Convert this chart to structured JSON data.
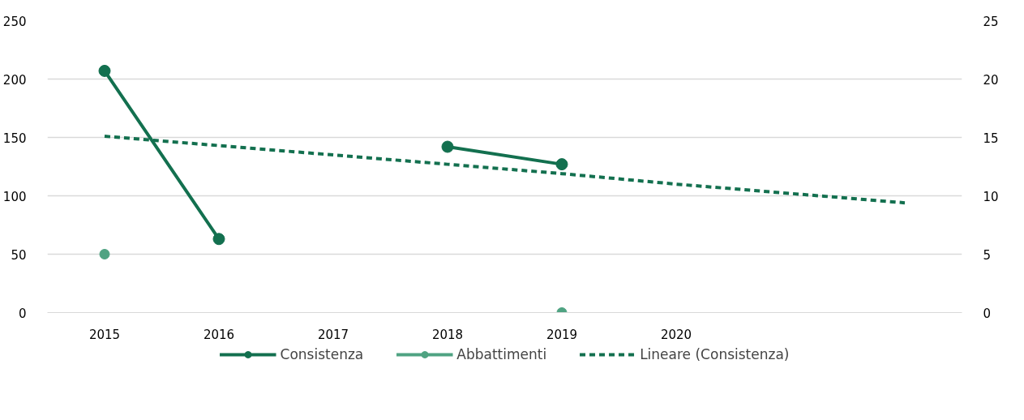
{
  "chart_data": {
    "type": "line",
    "categories": [
      "2015",
      "2016",
      "2017",
      "2018",
      "2019",
      "2020",
      null,
      null
    ],
    "series": [
      {
        "name": "Consistenza",
        "color": "#13704f",
        "values": [
          207,
          63,
          null,
          142,
          127,
          null,
          null,
          null
        ],
        "marker": "circle",
        "line_style": "solid"
      },
      {
        "name": "Abbattimenti",
        "type": "scatter",
        "color": "#4fa382",
        "values": [
          5,
          null,
          null,
          null,
          0,
          null,
          null,
          null
        ],
        "axis": "y2",
        "marker": "circle",
        "line_style": "solid"
      },
      {
        "name": "Lineare (Consistenza)",
        "color": "#13704f",
        "values": [
          151,
          143,
          135,
          127,
          119,
          110,
          102,
          94
        ],
        "marker": "none",
        "line_style": "dashed"
      }
    ],
    "ylim": [
      0,
      250
    ],
    "yticks": [
      0,
      50,
      100,
      150,
      200,
      250
    ],
    "y2lim": [
      0,
      25
    ],
    "y2ticks": [
      0,
      5,
      10,
      15,
      20,
      25
    ],
    "grid": "y",
    "legend": "bottom"
  }
}
